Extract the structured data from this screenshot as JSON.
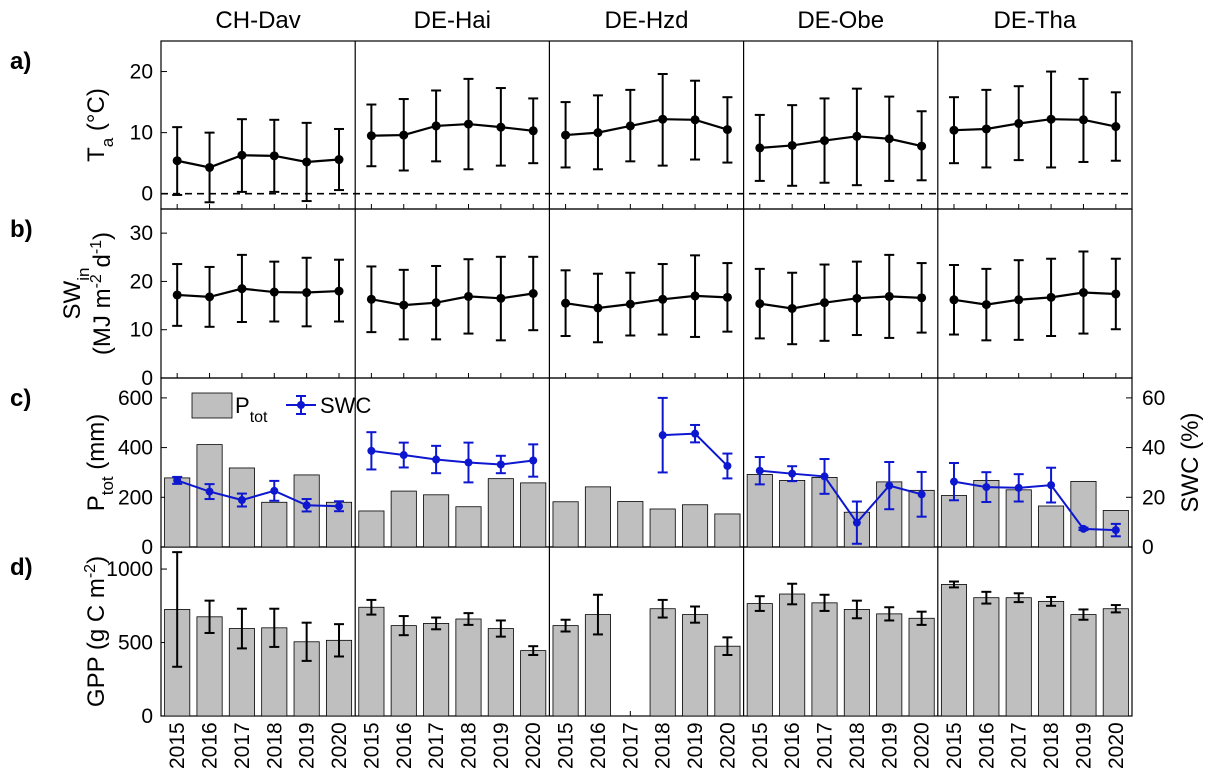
{
  "sites": [
    "CH-Dav",
    "DE-Hai",
    "DE-Hzd",
    "DE-Obe",
    "DE-Tha"
  ],
  "years": [
    "2015",
    "2016",
    "2017",
    "2018",
    "2019",
    "2020"
  ],
  "colors": {
    "bar": "#bfbfbf",
    "swc": "#0c17cf",
    "line": "#000000"
  },
  "panels": {
    "a": {
      "label": "a)",
      "ylabel_main": "T",
      "ylabel_sub": "a",
      "ylabel_unit": " (°C)",
      "ylim": [
        -2.5,
        25
      ],
      "yticks": [
        "0",
        "10",
        "20"
      ],
      "zero_line": "dashed"
    },
    "b": {
      "label": "b)",
      "ylabel_main": "SW",
      "ylabel_sub": "in",
      "ylabel_unit": "(MJ m-2 d-1)",
      "ylim": [
        0,
        35
      ],
      "yticks": [
        "0",
        "10",
        "20",
        "30"
      ]
    },
    "c": {
      "label": "c)",
      "ylabel_main": "P",
      "ylabel_sub": "tot",
      "ylabel_unit": " (mm)",
      "ylim": [
        0,
        680
      ],
      "yticks": [
        "0",
        "200",
        "400",
        "600"
      ],
      "ylabel_right": "SWC (%)",
      "ylim_right": [
        0,
        68
      ],
      "yticks_right": [
        "0",
        "20",
        "40",
        "60"
      ],
      "legend": {
        "bar_main": "P",
        "bar_sub": "tot",
        "line": "SWC",
        "placement": "top-left"
      }
    },
    "d": {
      "label": "d)",
      "ylabel": "GPP (g C m-2)",
      "ylim": [
        0,
        1150
      ],
      "yticks": [
        "0",
        "500",
        "1000"
      ]
    }
  },
  "chart_data": [
    {
      "type": "line",
      "panel": "a",
      "title": "",
      "ylabel": "Ta (°C)",
      "ylim": [
        -2.5,
        25
      ],
      "series": [
        {
          "site": "CH-Dav",
          "mean": [
            5.4,
            4.3,
            6.3,
            6.2,
            5.2,
            5.6
          ],
          "err_low": [
            -0.2,
            -1.4,
            0.3,
            0.3,
            -1.2,
            0.6
          ],
          "err_high": [
            10.9,
            10.0,
            12.2,
            12.1,
            11.6,
            10.6
          ]
        },
        {
          "site": "DE-Hai",
          "mean": [
            9.5,
            9.6,
            11.1,
            11.4,
            10.9,
            10.3
          ],
          "err_low": [
            4.5,
            3.8,
            5.3,
            4.0,
            4.6,
            5.0
          ],
          "err_high": [
            14.6,
            15.5,
            16.9,
            18.8,
            17.3,
            15.6
          ]
        },
        {
          "site": "DE-Hzd",
          "mean": [
            9.6,
            10.0,
            11.1,
            12.2,
            12.1,
            10.5
          ],
          "err_low": [
            4.3,
            4.0,
            5.3,
            4.6,
            5.6,
            5.1
          ],
          "err_high": [
            15.0,
            16.1,
            17.0,
            19.6,
            18.5,
            15.8
          ]
        },
        {
          "site": "DE-Obe",
          "mean": [
            7.5,
            7.9,
            8.7,
            9.4,
            9.0,
            7.8
          ],
          "err_low": [
            2.1,
            1.3,
            1.8,
            1.4,
            2.1,
            2.2
          ],
          "err_high": [
            12.9,
            14.5,
            15.6,
            17.2,
            15.9,
            13.5
          ]
        },
        {
          "site": "DE-Tha",
          "mean": [
            10.4,
            10.6,
            11.5,
            12.2,
            12.1,
            11.0
          ],
          "err_low": [
            5.0,
            4.3,
            5.5,
            4.3,
            5.2,
            5.4
          ],
          "err_high": [
            15.8,
            17.0,
            17.6,
            20.0,
            18.8,
            16.6
          ]
        }
      ]
    },
    {
      "type": "line",
      "panel": "b",
      "title": "",
      "ylabel": "SWin (MJ m-2 d-1)",
      "ylim": [
        0,
        35
      ],
      "series": [
        {
          "site": "CH-Dav",
          "mean": [
            17.2,
            16.8,
            18.5,
            17.8,
            17.7,
            18.0
          ],
          "err_low": [
            10.8,
            10.6,
            11.6,
            11.7,
            10.7,
            11.7
          ],
          "err_high": [
            23.6,
            23.0,
            25.5,
            24.1,
            24.9,
            24.5
          ]
        },
        {
          "site": "DE-Hai",
          "mean": [
            16.3,
            15.1,
            15.6,
            16.9,
            16.5,
            17.5
          ],
          "err_low": [
            9.5,
            8.0,
            8.0,
            9.2,
            7.8,
            9.9
          ],
          "err_high": [
            23.1,
            22.4,
            23.2,
            24.6,
            25.1,
            25.1
          ]
        },
        {
          "site": "DE-Hzd",
          "mean": [
            15.5,
            14.5,
            15.3,
            16.3,
            17.0,
            16.7
          ],
          "err_low": [
            8.7,
            7.4,
            8.8,
            9.0,
            8.5,
            9.6
          ],
          "err_high": [
            22.3,
            21.6,
            21.8,
            23.6,
            25.4,
            23.8
          ]
        },
        {
          "site": "DE-Obe",
          "mean": [
            15.4,
            14.4,
            15.6,
            16.5,
            16.9,
            16.6
          ],
          "err_low": [
            8.2,
            7.0,
            7.7,
            8.9,
            8.3,
            9.4
          ],
          "err_high": [
            22.6,
            21.8,
            23.5,
            24.1,
            25.5,
            23.8
          ]
        },
        {
          "site": "DE-Tha",
          "mean": [
            16.2,
            15.2,
            16.2,
            16.7,
            17.7,
            17.4
          ],
          "err_low": [
            9.0,
            7.8,
            7.9,
            8.7,
            9.2,
            10.1
          ],
          "err_high": [
            23.4,
            22.6,
            24.4,
            24.7,
            26.2,
            24.7
          ]
        }
      ]
    },
    {
      "type": "bar",
      "panel": "c",
      "title": "",
      "ylabel": "Ptot (mm)",
      "ylabel_right": "SWC (%)",
      "ylim": [
        0,
        680
      ],
      "ylim_right": [
        0,
        68
      ],
      "series": [
        {
          "site": "CH-Dav",
          "ptot": [
            278,
            412,
            318,
            180,
            290,
            180
          ],
          "swc": [
            26.8,
            22.3,
            18.9,
            22.6,
            16.8,
            16.4
          ],
          "swc_err": [
            1.4,
            3.0,
            2.6,
            4.0,
            2.5,
            2.0
          ]
        },
        {
          "site": "DE-Hai",
          "ptot": [
            145,
            225,
            210,
            162,
            275,
            258
          ],
          "swc": [
            38.7,
            37.0,
            35.2,
            34.0,
            33.2,
            34.8
          ],
          "swc_err": [
            7.5,
            5.0,
            5.5,
            8.0,
            3.5,
            6.5
          ]
        },
        {
          "site": "DE-Hzd",
          "ptot": [
            182,
            242,
            183,
            153,
            170,
            133
          ],
          "swc": [
            null,
            null,
            null,
            45.0,
            45.6,
            32.6
          ],
          "swc_err": [
            null,
            null,
            null,
            15.0,
            3.5,
            5.0
          ]
        },
        {
          "site": "DE-Obe",
          "ptot": [
            292,
            268,
            280,
            140,
            262,
            228
          ],
          "swc": [
            30.7,
            29.5,
            28.4,
            9.8,
            24.7,
            21.2
          ],
          "swc_err": [
            5.5,
            3.0,
            7.0,
            8.5,
            9.5,
            9.0
          ]
        },
        {
          "site": "DE-Tha",
          "ptot": [
            207,
            268,
            230,
            165,
            264,
            147
          ],
          "swc": [
            26.3,
            24.1,
            23.8,
            24.9,
            7.3,
            6.8
          ],
          "swc_err": [
            7.5,
            6.0,
            5.5,
            7.0,
            0.5,
            2.5
          ]
        }
      ]
    },
    {
      "type": "bar",
      "panel": "d",
      "title": "",
      "ylabel": "GPP (g C m-2)",
      "ylim": [
        0,
        1150
      ],
      "series": [
        {
          "site": "CH-Dav",
          "values": [
            725,
            675,
            595,
            600,
            505,
            515
          ],
          "err": [
            390,
            110,
            135,
            130,
            130,
            110
          ]
        },
        {
          "site": "DE-Hai",
          "values": [
            740,
            615,
            630,
            660,
            595,
            445
          ],
          "err": [
            50,
            65,
            40,
            40,
            55,
            30
          ]
        },
        {
          "site": "DE-Hzd",
          "values": [
            615,
            690,
            null,
            730,
            690,
            475
          ],
          "err": [
            40,
            135,
            null,
            60,
            55,
            60
          ]
        },
        {
          "site": "DE-Obe",
          "values": [
            765,
            830,
            770,
            725,
            695,
            665
          ],
          "err": [
            50,
            70,
            55,
            60,
            45,
            45
          ]
        },
        {
          "site": "DE-Tha",
          "values": [
            895,
            805,
            805,
            780,
            690,
            730
          ],
          "err": [
            20,
            40,
            30,
            30,
            35,
            25
          ]
        }
      ]
    }
  ]
}
